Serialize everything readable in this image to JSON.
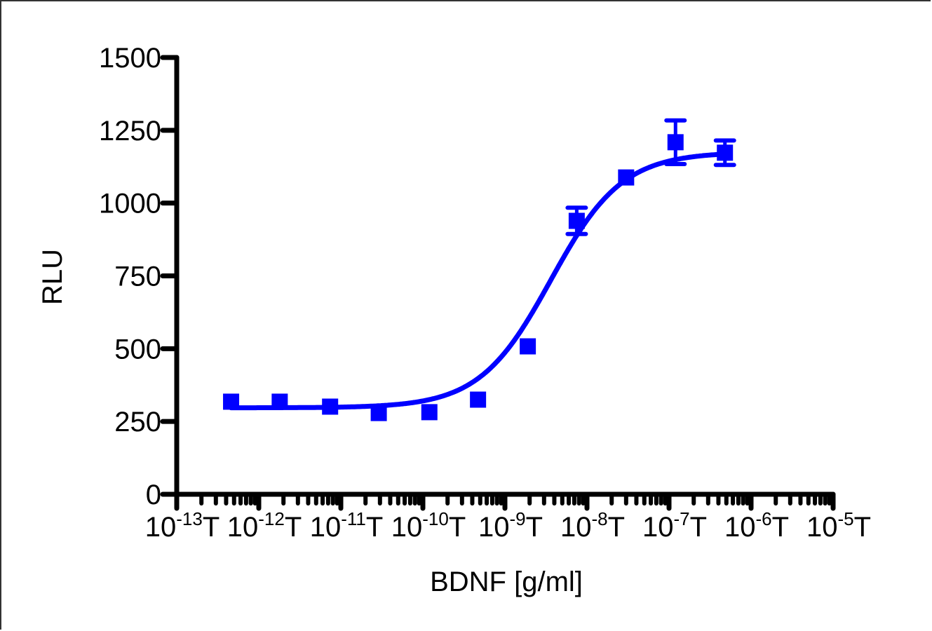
{
  "chart_data": {
    "type": "scatter",
    "title": "",
    "xlabel": "BDNF [g/ml]",
    "ylabel": "RLU",
    "xscale": "log",
    "xlim": [
      1e-13,
      1e-05
    ],
    "ylim": [
      0,
      1500
    ],
    "grid": false,
    "legend": null,
    "y_ticks": [
      0,
      250,
      500,
      750,
      1000,
      1250,
      1500
    ],
    "y_tick_labels": [
      "0",
      "250",
      "500",
      "750",
      "1000",
      "1250",
      "1500"
    ],
    "x_ticks_exp": [
      -13,
      -12,
      -11,
      -10,
      -9,
      -8,
      -7,
      -6,
      -5
    ],
    "x_tick_labels": [
      "10-13",
      "10-12",
      "10-11",
      "10-10",
      "10-9",
      "10-8",
      "10-7",
      "10-6",
      "10-5"
    ],
    "series": [
      {
        "name": "BDNF",
        "color": "#0000ff",
        "marker": "square",
        "x": [
          4.6e-13,
          1.8e-12,
          7.4e-12,
          2.9e-11,
          1.2e-10,
          4.7e-10,
          1.9e-09,
          7.5e-09,
          3e-08,
          1.2e-07,
          4.8e-07
        ],
        "y": [
          318,
          318,
          301,
          279,
          282,
          325,
          508,
          939,
          1088,
          1209,
          1173
        ],
        "error": [
          null,
          null,
          null,
          null,
          null,
          null,
          null,
          45,
          null,
          75,
          42
        ]
      }
    ],
    "fit": {
      "model": "sigmoidal dose-response",
      "bottom": 297,
      "top": 1175,
      "log_ec50": -8.44,
      "hill_slope": 1.0,
      "color": "#0000ff"
    }
  },
  "labels": {
    "xlabel": "BDNF [g/ml]",
    "ylabel": "RLU"
  }
}
